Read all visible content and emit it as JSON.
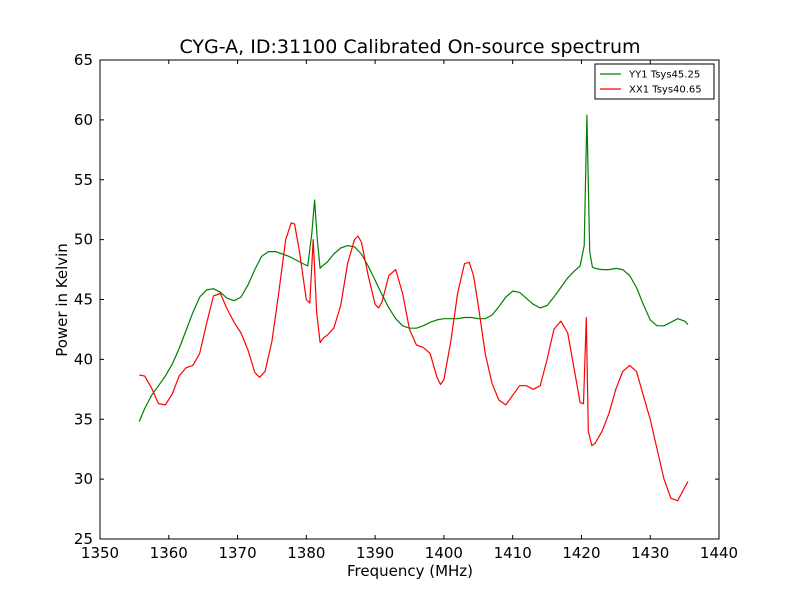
{
  "chart_data": {
    "type": "line",
    "title": "CYG-A, ID:31100 Calibrated On-source spectrum",
    "xlabel": "Frequency (MHz)",
    "ylabel": "Power in Kelvin",
    "xlim": [
      1350,
      1440
    ],
    "ylim": [
      25,
      65
    ],
    "xticks": [
      1350,
      1360,
      1370,
      1380,
      1390,
      1400,
      1410,
      1420,
      1430,
      1440
    ],
    "yticks": [
      25,
      30,
      35,
      40,
      45,
      50,
      55,
      60,
      65
    ],
    "grid": false,
    "legend_position": "top-right",
    "series": [
      {
        "name": "YY1 Tsys45.25",
        "color": "#008000",
        "x": [
          1355.7,
          1356.5,
          1357.5,
          1358.5,
          1359.5,
          1360.5,
          1361.5,
          1362.5,
          1363.5,
          1364.5,
          1365.5,
          1366.5,
          1367.5,
          1368.5,
          1369.5,
          1370.5,
          1371.5,
          1372.5,
          1373.5,
          1374.5,
          1375.5,
          1376.5,
          1377.5,
          1378.5,
          1379.5,
          1380.2,
          1380.8,
          1381.2,
          1381.6,
          1382.0,
          1382.3,
          1383.0,
          1384.0,
          1385.0,
          1386.0,
          1387.0,
          1388.0,
          1389.0,
          1390.0,
          1391.0,
          1392.0,
          1393.0,
          1394.0,
          1395.0,
          1396.0,
          1397.0,
          1398.0,
          1399.0,
          1400.0,
          1401.0,
          1402.0,
          1403.0,
          1404.0,
          1405.0,
          1406.0,
          1407.0,
          1408.0,
          1409.0,
          1410.0,
          1411.0,
          1412.0,
          1413.0,
          1414.0,
          1415.0,
          1416.0,
          1417.0,
          1418.0,
          1419.0,
          1419.8,
          1420.4,
          1420.8,
          1421.2,
          1421.6,
          1422.0,
          1423.0,
          1424.0,
          1425.0,
          1426.0,
          1427.0,
          1428.0,
          1429.0,
          1430.0,
          1431.0,
          1432.0,
          1433.0,
          1434.0,
          1435.0,
          1435.5
        ],
        "y": [
          34.8,
          35.9,
          37.0,
          37.8,
          38.6,
          39.6,
          40.9,
          42.4,
          43.9,
          45.2,
          45.8,
          45.9,
          45.6,
          45.1,
          44.9,
          45.2,
          46.2,
          47.5,
          48.6,
          49.0,
          49.0,
          48.8,
          48.6,
          48.3,
          48.0,
          47.8,
          50.5,
          53.3,
          50.0,
          47.6,
          47.8,
          48.1,
          48.8,
          49.3,
          49.5,
          49.4,
          48.8,
          47.8,
          46.6,
          45.4,
          44.3,
          43.4,
          42.8,
          42.6,
          42.6,
          42.8,
          43.1,
          43.3,
          43.4,
          43.4,
          43.4,
          43.5,
          43.5,
          43.4,
          43.4,
          43.7,
          44.4,
          45.2,
          45.7,
          45.6,
          45.1,
          44.6,
          44.3,
          44.5,
          45.2,
          46.0,
          46.8,
          47.4,
          47.8,
          49.5,
          60.4,
          49.0,
          47.7,
          47.6,
          47.5,
          47.5,
          47.6,
          47.5,
          47.0,
          46.0,
          44.6,
          43.3,
          42.8,
          42.8,
          43.1,
          43.4,
          43.2,
          42.9
        ]
      },
      {
        "name": "XX1 Tsys40.65",
        "color": "#ff0000",
        "x": [
          1355.7,
          1356.5,
          1357.5,
          1358.5,
          1359.5,
          1360.5,
          1361.5,
          1362.5,
          1363.5,
          1364.5,
          1365.5,
          1366.5,
          1367.5,
          1368.5,
          1369.5,
          1370.5,
          1371.5,
          1372.5,
          1373.2,
          1374.0,
          1375.0,
          1376.0,
          1377.0,
          1377.8,
          1378.3,
          1379.0,
          1380.0,
          1380.5,
          1381.0,
          1381.5,
          1382.0,
          1382.5,
          1383.0,
          1384.0,
          1385.0,
          1386.0,
          1387.0,
          1387.5,
          1388.0,
          1389.0,
          1390.0,
          1390.5,
          1391.0,
          1392.0,
          1393.0,
          1394.0,
          1395.0,
          1396.0,
          1397.0,
          1398.0,
          1399.0,
          1399.5,
          1400.0,
          1401.0,
          1402.0,
          1403.0,
          1403.7,
          1404.3,
          1405.0,
          1406.0,
          1407.0,
          1408.0,
          1409.0,
          1410.0,
          1411.0,
          1412.0,
          1413.0,
          1414.0,
          1415.0,
          1416.0,
          1417.0,
          1418.0,
          1419.0,
          1419.8,
          1420.3,
          1420.7,
          1421.0,
          1421.5,
          1422.0,
          1423.0,
          1424.0,
          1425.0,
          1426.0,
          1427.0,
          1428.0,
          1429.0,
          1430.0,
          1431.0,
          1432.0,
          1433.0,
          1434.0,
          1435.0,
          1435.5
        ],
        "y": [
          38.7,
          38.6,
          37.6,
          36.3,
          36.2,
          37.1,
          38.6,
          39.3,
          39.5,
          40.5,
          43.0,
          45.3,
          45.5,
          44.2,
          43.1,
          42.2,
          40.8,
          38.9,
          38.5,
          39.0,
          41.5,
          45.6,
          50.0,
          51.4,
          51.3,
          49.0,
          45.0,
          44.7,
          50.0,
          44.0,
          41.4,
          41.8,
          42.0,
          42.6,
          44.5,
          48.0,
          50.0,
          50.3,
          49.8,
          47.0,
          44.6,
          44.3,
          44.8,
          47.0,
          47.5,
          45.5,
          42.5,
          41.2,
          41.0,
          40.5,
          38.5,
          37.9,
          38.3,
          41.5,
          45.5,
          48.0,
          48.1,
          47.0,
          44.5,
          40.5,
          38.0,
          36.6,
          36.2,
          37.0,
          37.8,
          37.8,
          37.5,
          37.8,
          40.0,
          42.5,
          43.2,
          42.2,
          39.0,
          36.4,
          36.3,
          43.5,
          34.0,
          32.8,
          33.0,
          34.0,
          35.5,
          37.5,
          39.0,
          39.5,
          39.0,
          37.0,
          35.0,
          32.5,
          30.0,
          28.4,
          28.2,
          29.3,
          29.8
        ]
      }
    ]
  }
}
